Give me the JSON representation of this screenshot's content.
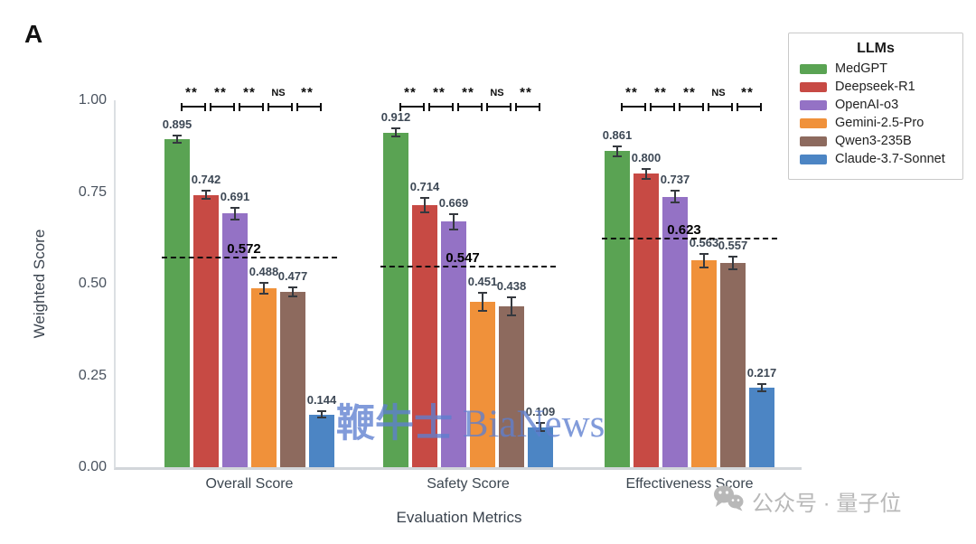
{
  "panel_label": "A",
  "axes": {
    "y_title": "Weighted Score",
    "x_title": "Evaluation Metrics",
    "y_ticks": [
      "0.00",
      "0.25",
      "0.50",
      "0.75",
      "1.00"
    ]
  },
  "legend": {
    "title": "LLMs",
    "items": [
      {
        "label": "MedGPT",
        "color": "#5aa353"
      },
      {
        "label": "Deepseek-R1",
        "color": "#c74a44"
      },
      {
        "label": "OpenAI-o3",
        "color": "#9472c5"
      },
      {
        "label": "Gemini-2.5-Pro",
        "color": "#f0913a"
      },
      {
        "label": "Qwen3-235B",
        "color": "#8d6a5e"
      },
      {
        "label": "Claude-3.7-Sonnet",
        "color": "#4c85c4"
      }
    ]
  },
  "chart_data": {
    "type": "bar",
    "categories": [
      "Overall Score",
      "Safety Score",
      "Effectiveness Score"
    ],
    "series": [
      {
        "name": "MedGPT",
        "color": "#5aa353",
        "values": [
          0.895,
          0.912,
          0.861
        ],
        "errors": [
          0.012,
          0.014,
          0.016
        ]
      },
      {
        "name": "Deepseek-R1",
        "color": "#c74a44",
        "values": [
          0.742,
          0.714,
          0.8
        ],
        "errors": [
          0.013,
          0.022,
          0.016
        ]
      },
      {
        "name": "OpenAI-o3",
        "color": "#9472c5",
        "values": [
          0.691,
          0.669,
          0.737
        ],
        "errors": [
          0.018,
          0.023,
          0.018
        ]
      },
      {
        "name": "Gemini-2.5-Pro",
        "color": "#f0913a",
        "values": [
          0.488,
          0.451,
          0.563
        ],
        "errors": [
          0.018,
          0.027,
          0.02
        ]
      },
      {
        "name": "Qwen3-235B",
        "color": "#8d6a5e",
        "values": [
          0.477,
          0.438,
          0.557
        ],
        "errors": [
          0.015,
          0.027,
          0.02
        ]
      },
      {
        "name": "Claude-3.7-Sonnet",
        "color": "#4c85c4",
        "values": [
          0.144,
          0.109,
          0.217
        ],
        "errors": [
          0.012,
          0.013,
          0.013
        ]
      }
    ],
    "thresholds": [
      0.572,
      0.547,
      0.623
    ],
    "threshold_labels": [
      "0.572",
      "0.547",
      "0.623"
    ],
    "significance": [
      [
        "**",
        "**",
        "**",
        "NS",
        "**"
      ],
      [
        "**",
        "**",
        "**",
        "NS",
        "**"
      ],
      [
        "**",
        "**",
        "**",
        "NS",
        "**"
      ]
    ],
    "xlabel": "Evaluation Metrics",
    "ylabel": "Weighted Score",
    "ylim": [
      0,
      1
    ],
    "grid": false,
    "legend_position": "upper right"
  },
  "watermarks": {
    "center_cn": "鞭牛士",
    "center_en": " BiaNews",
    "corner_text": "公众号 · 量子位"
  }
}
